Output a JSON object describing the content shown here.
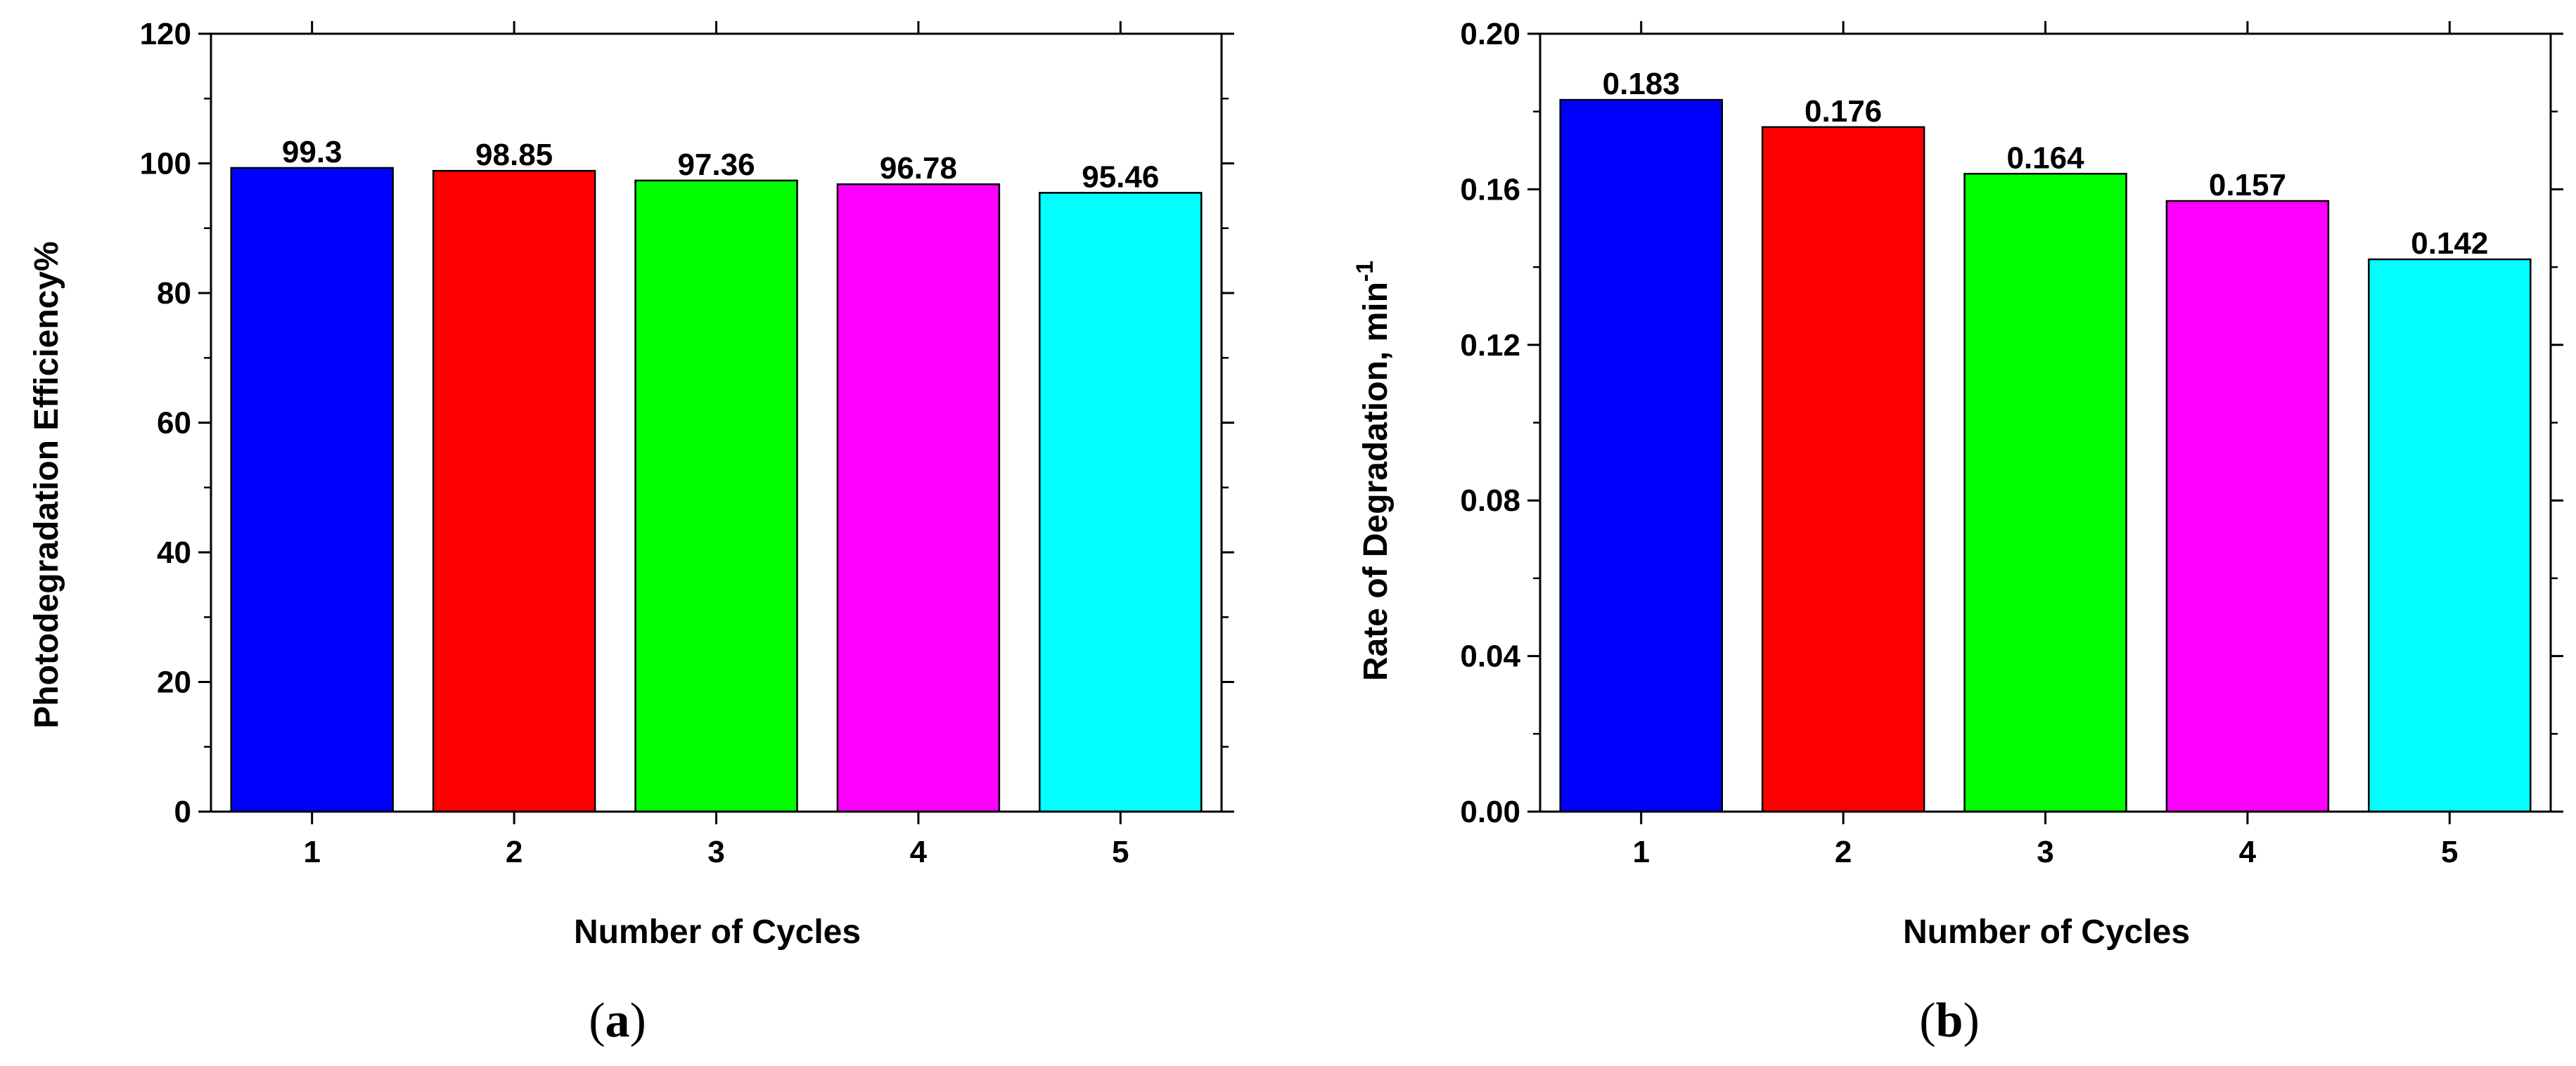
{
  "chart_data": [
    {
      "type": "bar",
      "panel_label": "a",
      "title": "",
      "categories": [
        "1",
        "2",
        "3",
        "4",
        "5"
      ],
      "values": [
        99.3,
        98.85,
        97.36,
        96.78,
        95.46
      ],
      "data_labels": [
        "99.3",
        "98.85",
        "97.36",
        "96.78",
        "95.46"
      ],
      "colors": [
        "#0000ff",
        "#ff0000",
        "#00ff00",
        "#ff00ff",
        "#00ffff"
      ],
      "xlabel": "Number of Cycles",
      "ylabel": "Photodegradation Efficiency%",
      "ylim": [
        0,
        120
      ],
      "yticks": [
        "0",
        "20",
        "40",
        "60",
        "80",
        "100",
        "120"
      ],
      "grid": false
    },
    {
      "type": "bar",
      "panel_label": "b",
      "title": "",
      "categories": [
        "1",
        "2",
        "3",
        "4",
        "5"
      ],
      "values": [
        0.183,
        0.176,
        0.164,
        0.157,
        0.142
      ],
      "data_labels": [
        "0.183",
        "0.176",
        "0.164",
        "0.157",
        "0.142"
      ],
      "colors": [
        "#0000ff",
        "#ff0000",
        "#00ff00",
        "#ff00ff",
        "#00ffff"
      ],
      "xlabel": "Number of Cycles",
      "ylabel": "Rate of Degradation, min",
      "ylabel_superscript": "-1",
      "ylim": [
        0,
        0.2
      ],
      "yticks": [
        "0.00",
        "0.04",
        "0.08",
        "0.12",
        "0.16",
        "0.20"
      ],
      "grid": false
    }
  ]
}
